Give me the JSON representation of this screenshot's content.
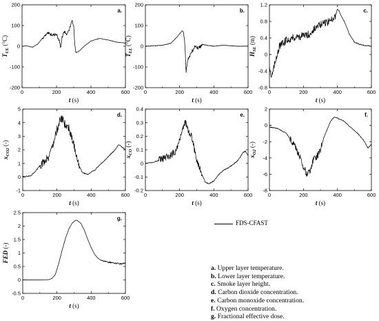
{
  "legend": {
    "label": "FDS-CFAST"
  },
  "captions": [
    {
      "key": "a.",
      "text": "Upper layer temperature."
    },
    {
      "key": "b.",
      "text": "Lower layer temperature."
    },
    {
      "key": "c.",
      "text": "Smoke layer height."
    },
    {
      "key": "d.",
      "text": "Carbon dioxide concentration."
    },
    {
      "key": "e.",
      "text": "Carbon monoxide concentration."
    },
    {
      "key": "f.",
      "text": "Oxygen concentration."
    },
    {
      "key": "g.",
      "text": "Fractional effective dose."
    }
  ],
  "chart_data": [
    {
      "type": "line",
      "panel": "a.",
      "ylabel": {
        "sym": "T",
        "sub": "UL",
        "unit": "(°C)"
      },
      "xlabel": {
        "sym": "t",
        "unit": "(s)"
      },
      "xlim": [
        0,
        600
      ],
      "ylim": [
        -200,
        200
      ],
      "xticks": [
        0,
        200,
        400,
        600
      ],
      "yticks": [
        -200,
        -100,
        0,
        100,
        200
      ],
      "series": [
        {
          "noise": 7,
          "noise_range": [
            120,
            300
          ],
          "x": [
            0,
            30,
            60,
            90,
            120,
            150,
            180,
            200,
            215,
            225,
            232,
            245,
            260,
            275,
            285,
            292,
            300,
            305,
            312,
            330,
            360,
            400,
            450,
            500,
            550,
            600
          ],
          "y": [
            0,
            2,
            -5,
            10,
            40,
            62,
            55,
            58,
            30,
            -10,
            42,
            70,
            60,
            80,
            115,
            118,
            100,
            20,
            -30,
            -25,
            0,
            25,
            38,
            30,
            20,
            15
          ]
        }
      ]
    },
    {
      "type": "line",
      "panel": "b.",
      "ylabel": {
        "sym": "T",
        "sub": "LL",
        "unit": "(°C)"
      },
      "xlabel": {
        "sym": "t",
        "unit": "(s)"
      },
      "xlim": [
        0,
        600
      ],
      "ylim": [
        -200,
        200
      ],
      "xticks": [
        0,
        200,
        400,
        600
      ],
      "yticks": [
        -200,
        -100,
        0,
        100,
        200
      ],
      "series": [
        {
          "noise": 10,
          "noise_range": [
            225,
            330
          ],
          "x": [
            0,
            50,
            100,
            150,
            180,
            200,
            215,
            222,
            230,
            238,
            250,
            270,
            290,
            310,
            330,
            360,
            400,
            450,
            500,
            550,
            600
          ],
          "y": [
            0,
            2,
            5,
            15,
            40,
            60,
            75,
            70,
            20,
            -120,
            -60,
            -30,
            0,
            -10,
            10,
            5,
            0,
            5,
            2,
            0,
            0
          ]
        }
      ]
    },
    {
      "type": "line",
      "panel": "c.",
      "ylabel": {
        "sym": "H",
        "sub": "SL",
        "unit": "(m)"
      },
      "xlabel": {
        "sym": "t",
        "unit": "(s)"
      },
      "xlim": [
        0,
        600
      ],
      "ylim": [
        -0.8,
        1.2
      ],
      "xticks": [
        0,
        200,
        400,
        600
      ],
      "yticks": [
        -0.8,
        -0.4,
        0,
        0.4,
        0.8,
        1.2
      ],
      "ytick_labels": [
        "-0.8",
        "-0.4",
        "0",
        "0.4",
        "0.8",
        "1.2"
      ],
      "series": [
        {
          "noise": 0.09,
          "noise_range": [
            15,
            390
          ],
          "x": [
            0,
            10,
            20,
            40,
            60,
            100,
            150,
            200,
            240,
            260,
            290,
            320,
            360,
            390,
            400,
            410,
            420,
            440,
            470,
            500,
            530,
            560,
            600
          ],
          "y": [
            -0.3,
            -0.55,
            -0.45,
            -0.05,
            0.2,
            0.35,
            0.42,
            0.45,
            0.5,
            0.6,
            0.7,
            0.75,
            0.82,
            0.95,
            1.1,
            1.05,
            0.95,
            0.8,
            0.5,
            0.3,
            0.25,
            0.22,
            0.2
          ]
        }
      ]
    },
    {
      "type": "line",
      "panel": "d.",
      "ylabel": {
        "sym": "x",
        "sub": "CO2",
        "unit": "(-)"
      },
      "xlabel": {
        "sym": "t",
        "unit": "(s)"
      },
      "xlim": [
        0,
        600
      ],
      "ylim": [
        -1,
        5
      ],
      "xticks": [
        0,
        200,
        400,
        600
      ],
      "yticks": [
        -1,
        0,
        1,
        2,
        3,
        4,
        5
      ],
      "series": [
        {
          "noise": 0.3,
          "noise_range": [
            100,
            330
          ],
          "x": [
            0,
            50,
            100,
            150,
            180,
            200,
            220,
            235,
            250,
            270,
            290,
            310,
            330,
            350,
            380,
            420,
            460,
            500,
            540,
            560,
            580,
            600
          ],
          "y": [
            0,
            0.1,
            0.8,
            1.5,
            2.5,
            3.5,
            4.3,
            4.2,
            3.8,
            3.6,
            2.8,
            1.8,
            0.8,
            0.3,
            0.2,
            0.5,
            1.0,
            1.5,
            2.0,
            2.4,
            2.2,
            2.0
          ]
        }
      ]
    },
    {
      "type": "line",
      "panel": "e.",
      "ylabel": {
        "sym": "x",
        "sub": "CO",
        "unit": "(-)"
      },
      "xlabel": {
        "sym": "t",
        "unit": "(s)"
      },
      "xlim": [
        0,
        600
      ],
      "ylim": [
        -0.2,
        0.4
      ],
      "xticks": [
        0,
        200,
        400,
        600
      ],
      "yticks": [
        -0.2,
        -0.1,
        0,
        0.1,
        0.2,
        0.3,
        0.4
      ],
      "ytick_labels": [
        "-0.2",
        "-0.1",
        "0",
        "0.1",
        "0.2",
        "0.3",
        "0.4"
      ],
      "series": [
        {
          "noise": 0.028,
          "noise_range": [
            80,
            330
          ],
          "x": [
            0,
            50,
            100,
            150,
            180,
            200,
            220,
            235,
            250,
            270,
            290,
            310,
            330,
            350,
            370,
            400,
            430,
            460,
            500,
            540,
            570,
            585,
            600
          ],
          "y": [
            0,
            0.01,
            0.03,
            0.06,
            0.1,
            0.18,
            0.27,
            0.3,
            0.24,
            0.2,
            0.08,
            -0.02,
            -0.08,
            -0.14,
            -0.15,
            -0.13,
            -0.08,
            -0.05,
            -0.02,
            0.02,
            0.08,
            0.09,
            0.06
          ]
        }
      ]
    },
    {
      "type": "line",
      "panel": "f.",
      "ylabel": {
        "sym": "x",
        "sub": "O2",
        "unit": "(-)"
      },
      "xlabel": {
        "sym": "t",
        "unit": "(s)"
      },
      "xlim": [
        0,
        600
      ],
      "ylim": [
        -8,
        2
      ],
      "xticks": [
        0,
        200,
        400,
        600
      ],
      "yticks": [
        -8,
        -6,
        -4,
        -2,
        0,
        2
      ],
      "series": [
        {
          "noise": 0.4,
          "noise_range": [
            120,
            310
          ],
          "x": [
            0,
            50,
            100,
            150,
            180,
            200,
            220,
            240,
            260,
            280,
            300,
            320,
            340,
            360,
            380,
            400,
            440,
            480,
            520,
            560,
            580,
            600
          ],
          "y": [
            -0.2,
            -0.4,
            -1.0,
            -2.5,
            -4.0,
            -5.0,
            -6.0,
            -5.5,
            -4.0,
            -3.8,
            -3.0,
            -1.5,
            -0.5,
            0.5,
            1.0,
            0.9,
            0.5,
            -0.3,
            -1.0,
            -2.0,
            -2.8,
            -2.3
          ]
        }
      ]
    },
    {
      "type": "line",
      "panel": "g.",
      "ylabel": {
        "sym": "FED",
        "sub": "",
        "unit": "(-)"
      },
      "xlabel": {
        "sym": "t",
        "unit": "(s)"
      },
      "xlim": [
        0,
        600
      ],
      "ylim": [
        -0.5,
        2.5
      ],
      "xticks": [
        0,
        200,
        400,
        600
      ],
      "yticks": [
        -0.5,
        0,
        0.5,
        1,
        1.5,
        2,
        2.5
      ],
      "ytick_labels": [
        "-0.5",
        "0",
        "0.5",
        "1",
        "1.5",
        "2",
        "2.5"
      ],
      "series": [
        {
          "noise": 0.025,
          "noise_range": [
            460,
            600
          ],
          "x": [
            0,
            100,
            150,
            170,
            190,
            210,
            230,
            250,
            270,
            290,
            310,
            320,
            340,
            360,
            380,
            400,
            420,
            440,
            460,
            500,
            540,
            570,
            600
          ],
          "y": [
            0,
            0,
            0.01,
            0.05,
            0.2,
            0.6,
            1.1,
            1.55,
            1.9,
            2.12,
            2.22,
            2.2,
            2.1,
            1.85,
            1.5,
            1.2,
            0.95,
            0.8,
            0.72,
            0.66,
            0.62,
            0.6,
            0.62
          ]
        }
      ]
    }
  ]
}
